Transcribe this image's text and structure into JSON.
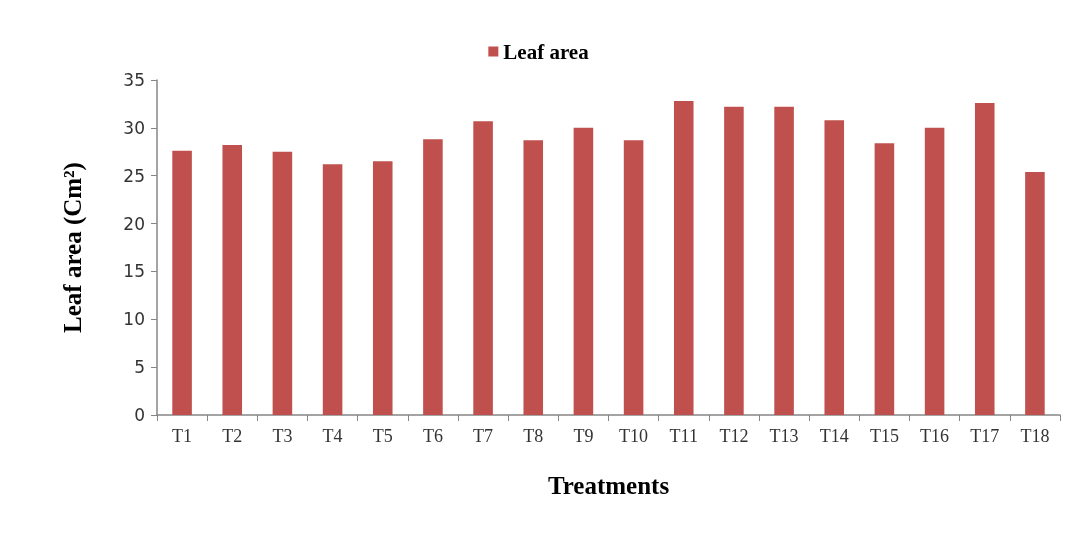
{
  "chart_data": {
    "type": "bar",
    "xlabel": "Treatments",
    "ylabel": "Leaf area (Cm²)",
    "categories": [
      "T1",
      "T2",
      "T3",
      "T4",
      "T5",
      "T6",
      "T7",
      "T8",
      "T9",
      "T10",
      "T11",
      "T12",
      "T13",
      "T14",
      "T15",
      "T16",
      "T17",
      "T18"
    ],
    "series": [
      {
        "name": "Leaf area",
        "color": "#c0504d",
        "values": [
          27.6,
          28.2,
          27.5,
          26.2,
          26.5,
          28.8,
          30.7,
          28.7,
          30.0,
          28.7,
          32.8,
          32.2,
          32.2,
          30.8,
          28.4,
          30.0,
          32.6,
          25.4
        ]
      }
    ],
    "ylim": [
      0,
      35
    ],
    "yticks": [
      0,
      5,
      10,
      15,
      20,
      25,
      30,
      35
    ],
    "legend": "top"
  }
}
